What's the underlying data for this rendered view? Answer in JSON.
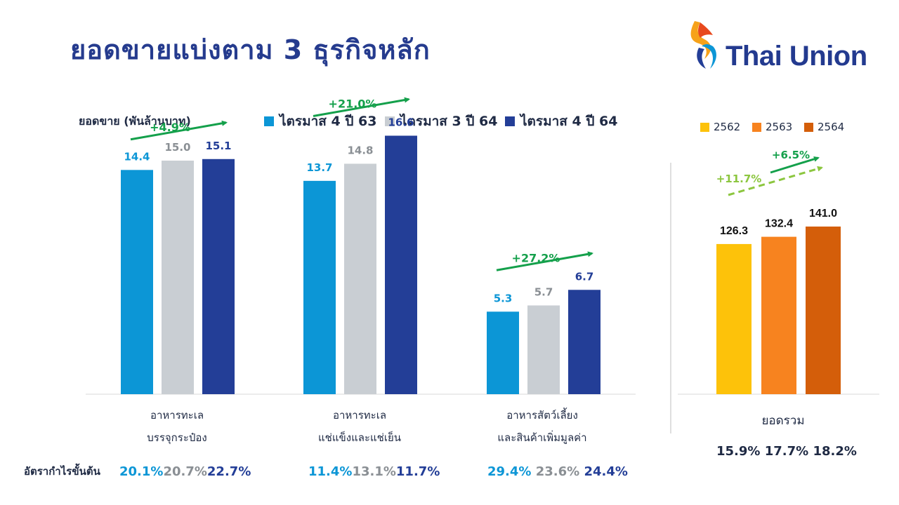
{
  "title": "ยอดขายแบ่งตาม 3 ธุรกิจหลัก",
  "logo_text": "Thai Union",
  "chart_data": [
    {
      "type": "bar",
      "ylabel": "ยอดขาย (พันล้านบาท)",
      "categories": [
        [
          "อาหารทะเล",
          "บรรจุกระป๋อง"
        ],
        [
          "อาหารทะเล",
          "แช่แข็งและแช่เย็น"
        ],
        [
          "อาหารสัตว์เลี้ยง",
          "และสินค้าเพิ่มมูลค่า"
        ]
      ],
      "series": [
        {
          "name": "ไตรมาส 4 ปี 63",
          "color": "#0c96d6",
          "values": [
            14.4,
            13.7,
            5.3
          ]
        },
        {
          "name": "ไตรมาส 3 ปี 64",
          "color": "#c9ced3",
          "values": [
            15.0,
            14.8,
            5.7
          ]
        },
        {
          "name": "ไตรมาส 4 ปี 64",
          "color": "#233e97",
          "values": [
            15.1,
            16.6,
            6.7
          ]
        }
      ],
      "label_colors": [
        "#0c96d6",
        "#8a8f94",
        "#233e97"
      ],
      "growth": [
        "+4.9%",
        "+21.0%",
        "+27.2%"
      ],
      "gross_margin_label": "อัตรากำไรขั้นต้น",
      "gross_margin": [
        [
          "20.1%",
          "20.7%",
          "22.7%"
        ],
        [
          "11.4%",
          "13.1%",
          "11.7%"
        ],
        [
          "29.4%",
          "23.6%",
          "24.4%"
        ]
      ],
      "ylim": [
        0,
        20
      ]
    },
    {
      "type": "bar",
      "categories": [
        "2562",
        "2563",
        "2564"
      ],
      "values": [
        126.3,
        132.4,
        141.0
      ],
      "colors": [
        "#fdc20a",
        "#f7831f",
        "#d45e0a"
      ],
      "category_label": "ยอดรวม",
      "growth": [
        "+6.5%",
        "+11.7%"
      ],
      "gross_margin": [
        "15.9%",
        "17.7%",
        "18.2%"
      ],
      "ylim": [
        0,
        190
      ]
    }
  ]
}
